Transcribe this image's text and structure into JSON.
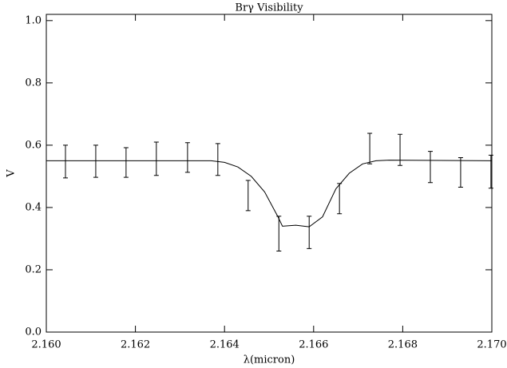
{
  "chart_data": {
    "type": "errorbar",
    "title": "Brγ Visibility",
    "xlabel": "λ(micron)",
    "ylabel": "V",
    "xlim": [
      2.16,
      2.17
    ],
    "ylim": [
      0,
      1.02
    ],
    "xticks": [
      {
        "value": 2.16,
        "label": "2.160"
      },
      {
        "value": 2.162,
        "label": "2.162"
      },
      {
        "value": 2.164,
        "label": "2.164"
      },
      {
        "value": 2.166,
        "label": "2.166"
      },
      {
        "value": 2.168,
        "label": "2.168"
      },
      {
        "value": 2.17,
        "label": "2.170"
      }
    ],
    "yticks": [
      {
        "value": 0,
        "label": "0.0"
      },
      {
        "value": 0.2,
        "label": "0.2"
      },
      {
        "value": 0.4,
        "label": "0.4"
      },
      {
        "value": 0.6,
        "label": "0.6"
      },
      {
        "value": 0.8,
        "label": "0.8"
      },
      {
        "value": 1,
        "label": "1.0"
      }
    ],
    "color": "#000000",
    "model": {
      "x": [
        2.16,
        2.1637,
        2.164,
        2.1643,
        2.1646,
        2.1649,
        2.1652,
        2.1653,
        2.1656,
        2.1659,
        2.1662,
        2.1665,
        2.1668,
        2.1671,
        2.1674,
        2.1677,
        2.17
      ],
      "values": [
        0.55,
        0.55,
        0.545,
        0.53,
        0.5,
        0.45,
        0.37,
        0.34,
        0.343,
        0.338,
        0.37,
        0.46,
        0.51,
        0.54,
        0.55,
        0.552,
        0.55
      ]
    },
    "measurements": {
      "x": [
        2.16043,
        2.16111,
        2.16179,
        2.16247,
        2.16317,
        2.16385,
        2.16453,
        2.16522,
        2.1659,
        2.16658,
        2.16726,
        2.16794,
        2.16862,
        2.1693,
        2.16998
      ],
      "low": [
        0.495,
        0.497,
        0.497,
        0.503,
        0.513,
        0.503,
        0.39,
        0.26,
        0.268,
        0.38,
        0.54,
        0.535,
        0.48,
        0.465,
        0.462
      ],
      "high": [
        0.6,
        0.6,
        0.592,
        0.61,
        0.608,
        0.605,
        0.487,
        0.372,
        0.372,
        0.477,
        0.638,
        0.635,
        0.58,
        0.56,
        0.568
      ]
    }
  }
}
